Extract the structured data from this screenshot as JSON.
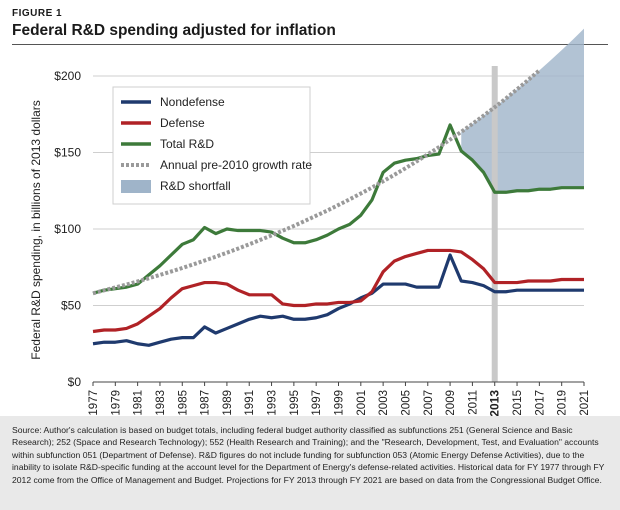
{
  "figure_label": "FIGURE 1",
  "title": "Federal R&D spending adjusted for inflation",
  "source": "Source: Author's calculation is based on budget totals, including federal budget authority classified as subfunctions 251 (General Science and Basic Research); 252 (Space and Research Technology); 552 (Health Research and Training); and the \"Research, Development, Test, and Evaluation\" accounts within subfunction 051 (Department of Defense). R&D figures do not include funding for subfunction 053 (Atomic Energy Defense Activities), due to the inability to isolate R&D-specific funding at the account level for the Department of Energy's defense-related activities. Historical data for FY 1977 through FY 2012 come from the Office of Management and Budget. Projections for FY 2013 through FY 2021 are based on data from the Congressional Budget Office.",
  "chart_data": {
    "type": "line",
    "ylabel": "Federal R&D spending, in billions of 2013 dollars",
    "ylim": [
      0,
      200
    ],
    "xlim": [
      1977,
      2021
    ],
    "y_ticks": [
      "$0",
      "$50",
      "$100",
      "$150",
      "$200"
    ],
    "y_tick_values": [
      0,
      50,
      100,
      150,
      200
    ],
    "x_ticks": [
      1977,
      1979,
      1981,
      1983,
      1985,
      1987,
      1989,
      1991,
      1993,
      1995,
      1997,
      1999,
      2001,
      2003,
      2005,
      2007,
      2009,
      2011,
      2013,
      2015,
      2017,
      2019,
      2021
    ],
    "highlight_year": 2013,
    "grid": true,
    "legend_position": "top-left",
    "x": [
      1977,
      1978,
      1979,
      1980,
      1981,
      1982,
      1983,
      1984,
      1985,
      1986,
      1987,
      1988,
      1989,
      1990,
      1991,
      1992,
      1993,
      1994,
      1995,
      1996,
      1997,
      1998,
      1999,
      2000,
      2001,
      2002,
      2003,
      2004,
      2005,
      2006,
      2007,
      2008,
      2009,
      2010,
      2011,
      2012,
      2013,
      2014,
      2015,
      2016,
      2017,
      2018,
      2019,
      2020,
      2021
    ],
    "series": [
      {
        "name": "Nondefense",
        "color": "#1f3a6e",
        "style": "solid",
        "values": [
          25,
          26,
          26,
          27,
          25,
          24,
          26,
          28,
          29,
          29,
          36,
          32,
          35,
          38,
          41,
          43,
          42,
          43,
          41,
          41,
          42,
          44,
          48,
          51,
          55,
          58,
          64,
          64,
          64,
          62,
          62,
          62,
          83,
          66,
          65,
          63,
          59,
          59,
          60,
          60,
          60,
          60,
          60,
          60,
          60
        ]
      },
      {
        "name": "Defense",
        "color": "#b02226",
        "style": "solid",
        "values": [
          33,
          34,
          34,
          35,
          38,
          43,
          48,
          55,
          61,
          63,
          65,
          65,
          64,
          60,
          57,
          57,
          57,
          51,
          50,
          50,
          51,
          51,
          52,
          52,
          53,
          59,
          72,
          79,
          82,
          84,
          86,
          86,
          86,
          85,
          80,
          74,
          65,
          65,
          65,
          66,
          66,
          66,
          67,
          67,
          67
        ]
      },
      {
        "name": "Total R&D",
        "color": "#3d7a3a",
        "style": "solid",
        "values": [
          58,
          60,
          61,
          62,
          64,
          70,
          76,
          83,
          90,
          93,
          101,
          97,
          100,
          99,
          99,
          99,
          98,
          94,
          91,
          91,
          93,
          96,
          100,
          103,
          109,
          119,
          137,
          143,
          145,
          146,
          148,
          149,
          168,
          151,
          145,
          137,
          124,
          124,
          125,
          125,
          126,
          126,
          127,
          127,
          127
        ]
      },
      {
        "name": "Annual pre-2010 growth rate",
        "color": "#9a9a9a",
        "style": "dotted",
        "values": [
          58,
          59.9,
          61.8,
          63.7,
          65.7,
          67.8,
          70,
          72.2,
          74.5,
          76.9,
          79.4,
          81.9,
          84.5,
          87.2,
          90,
          92.9,
          95.8,
          98.9,
          102,
          105.3,
          108.7,
          112.1,
          115.7,
          119.4,
          123.2,
          127.1,
          131.2,
          135.4,
          139.7,
          144.2,
          148.8,
          153.5,
          158.4,
          163.5,
          168.7,
          174.1,
          179.6,
          185.3,
          191.3,
          197.4,
          203.7,
          210.2,
          216.9,
          223.8,
          231
        ]
      },
      {
        "name": "R&D shortfall",
        "color": "#9fb4c9",
        "style": "area",
        "note": "area between Annual pre-2010 growth rate and Total R&D, 2010–2021"
      }
    ]
  }
}
